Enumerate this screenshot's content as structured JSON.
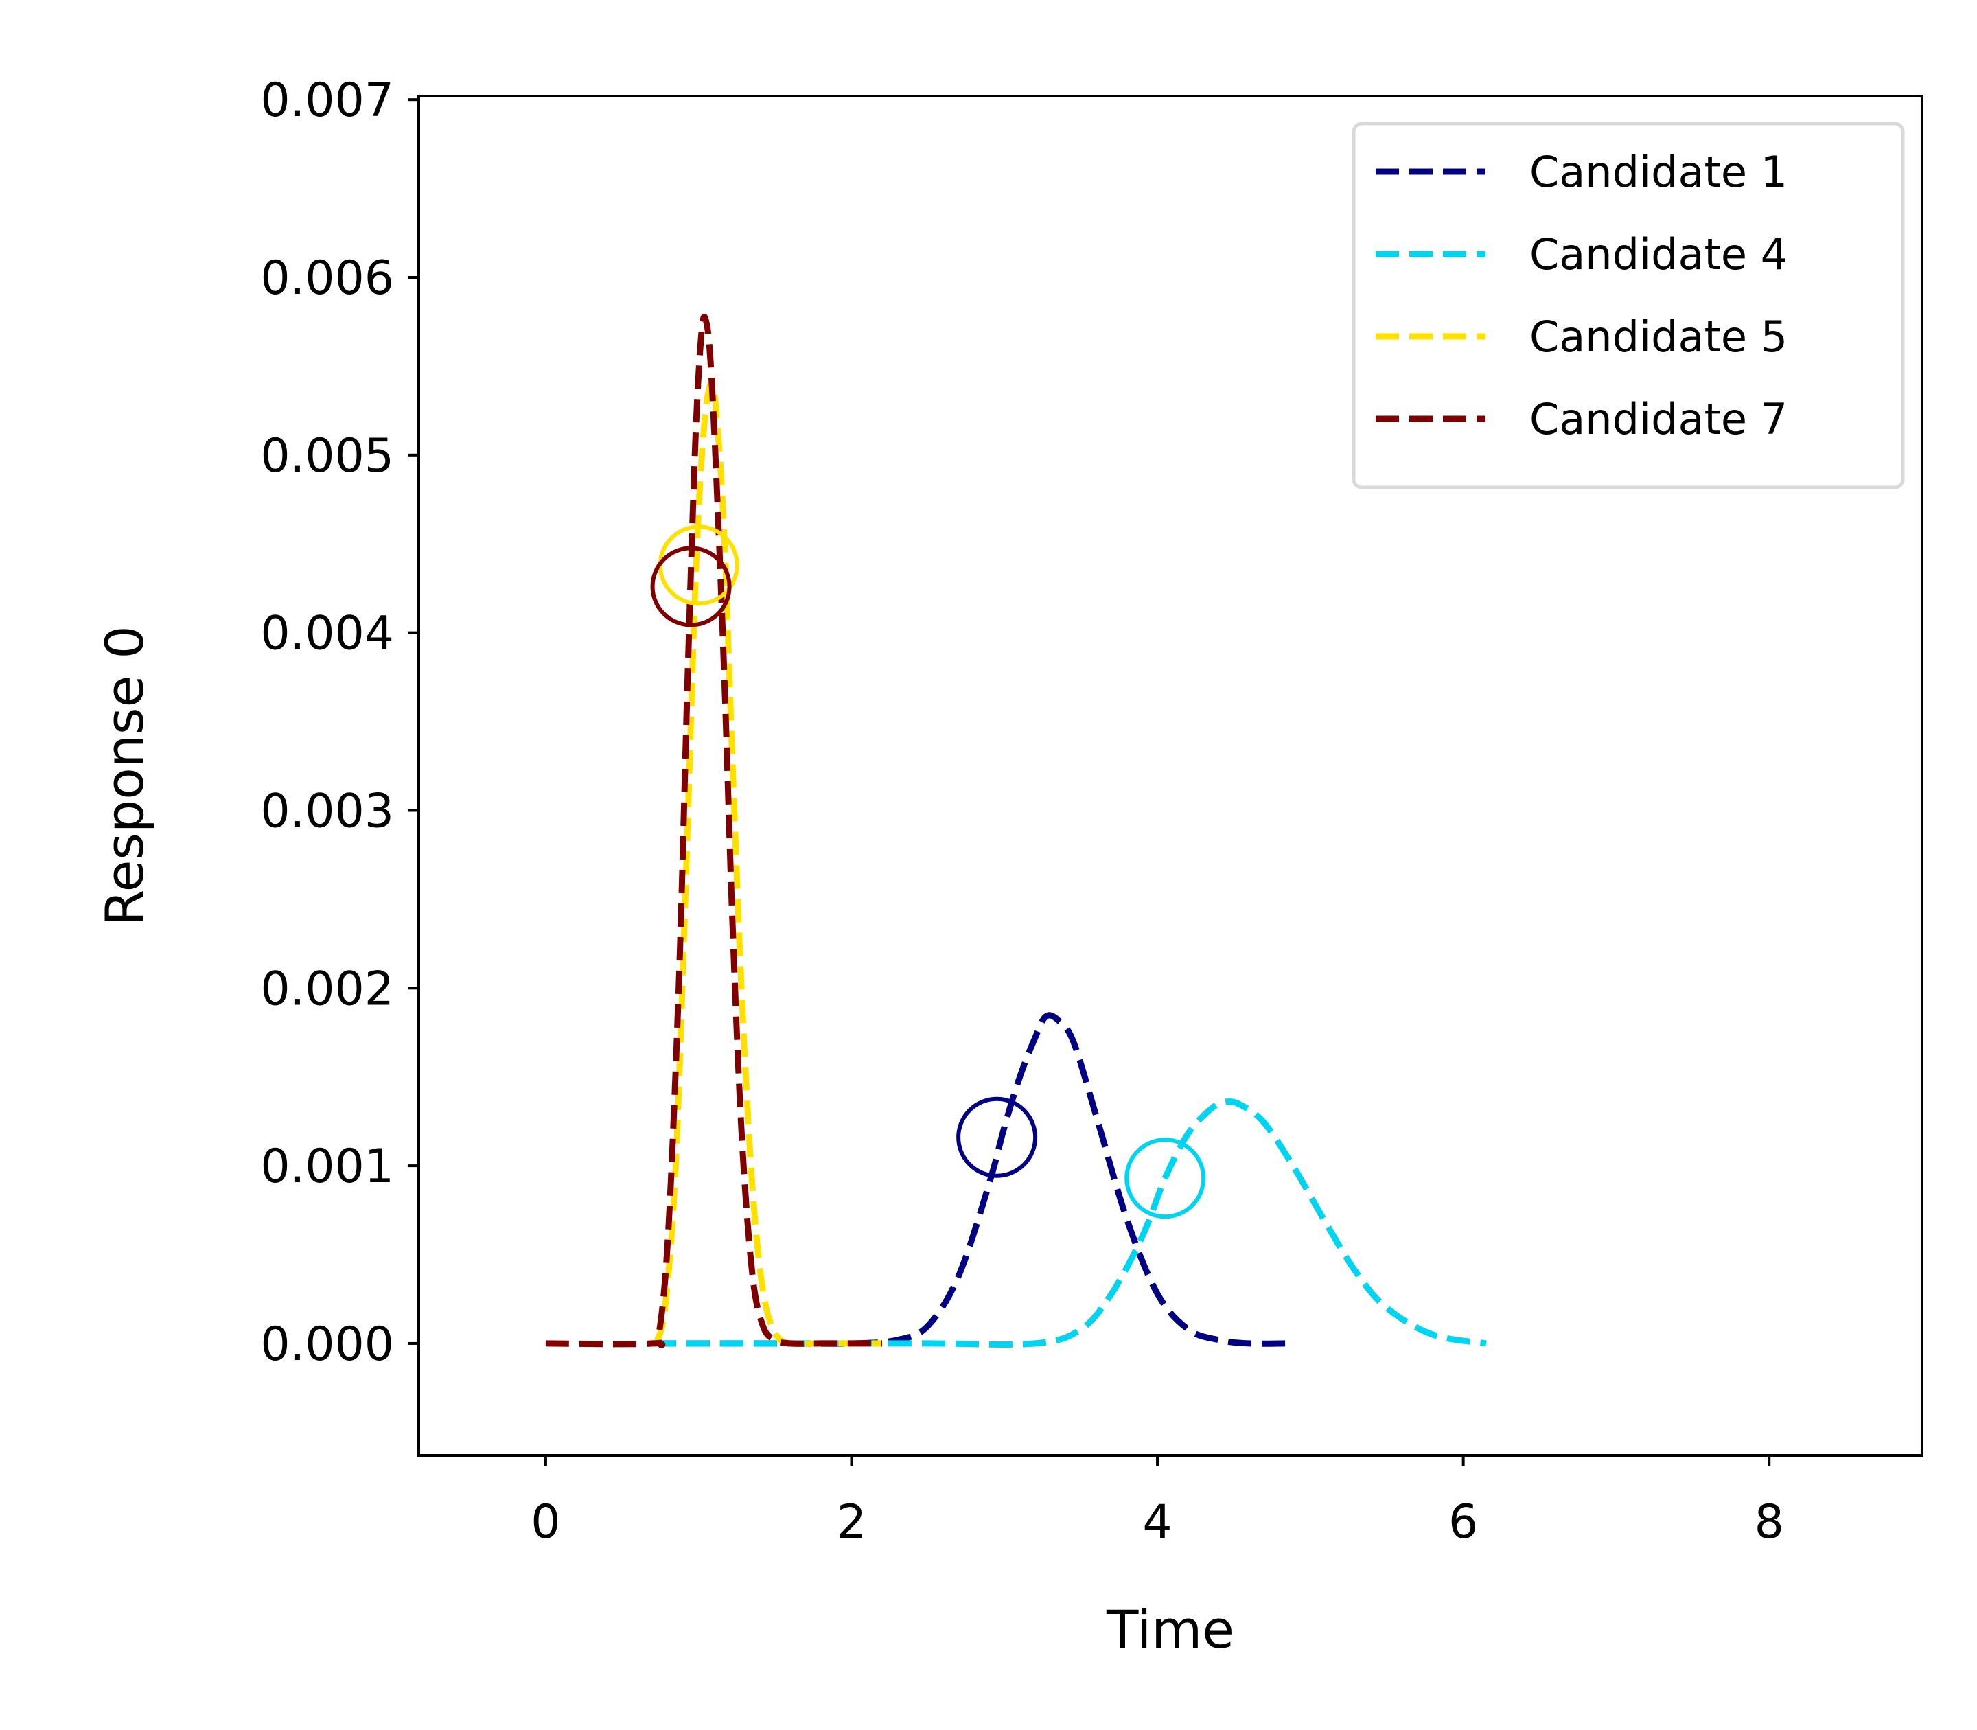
{
  "chart_data": {
    "type": "line",
    "title": "",
    "xlabel": "Time",
    "ylabel": "Response 0",
    "xlim": [
      -0.83,
      9.0
    ],
    "ylim": [
      -0.00063,
      0.00702
    ],
    "x_ticks": [
      0,
      2,
      4,
      6,
      8
    ],
    "x_tick_labels": [
      "0",
      "2",
      "4",
      "6",
      "8"
    ],
    "y_ticks": [
      0.0,
      0.001,
      0.002,
      0.003,
      0.004,
      0.005,
      0.006,
      0.007
    ],
    "y_tick_labels": [
      "0.000",
      "0.001",
      "0.002",
      "0.003",
      "0.004",
      "0.005",
      "0.006",
      "0.007"
    ],
    "grid": false,
    "legend_position": "top-right",
    "line_style": "dashed",
    "series": [
      {
        "name": "Candidate 1",
        "color": "#000080",
        "x": [
          0.7,
          1.0,
          1.5,
          2.0,
          2.3,
          2.5,
          2.7,
          2.9,
          3.0,
          3.1,
          3.2,
          3.27,
          3.35,
          3.45,
          3.6,
          3.8,
          4.0,
          4.2,
          4.4,
          4.6,
          4.85
        ],
        "y": [
          0.0,
          0.0,
          0.0,
          0.0,
          2e-05,
          0.0001,
          0.00038,
          0.0009,
          0.00122,
          0.0015,
          0.00172,
          0.00184,
          0.00182,
          0.0017,
          0.00128,
          0.0007,
          0.00028,
          8e-05,
          2e-05,
          0.0,
          0.0
        ]
      },
      {
        "name": "Candidate 4",
        "color": "#00d4f0",
        "x": [
          0.7,
          1.5,
          2.5,
          3.2,
          3.5,
          3.7,
          3.9,
          4.05,
          4.2,
          4.35,
          4.45,
          4.55,
          4.7,
          4.9,
          5.1,
          5.3,
          5.5,
          5.8,
          6.15
        ],
        "y": [
          0.0,
          0.0,
          0.0,
          0.0,
          8e-05,
          0.00028,
          0.0006,
          0.00093,
          0.00118,
          0.00132,
          0.00136,
          0.00134,
          0.00124,
          0.00098,
          0.00068,
          0.0004,
          0.0002,
          5e-05,
          0.0
        ],
        "marker": {
          "x": 4.05,
          "y": 0.00093
        }
      },
      {
        "name": "Candidate 5",
        "color": "#ffe000",
        "x": [
          0.72,
          0.78,
          0.85,
          0.92,
          0.98,
          1.03,
          1.08,
          1.12,
          1.17,
          1.22,
          1.28,
          1.35,
          1.42,
          1.5,
          1.6,
          1.8,
          2.2
        ],
        "y": [
          0.0,
          0.0002,
          0.001,
          0.0027,
          0.0043,
          0.0051,
          0.0054,
          0.0052,
          0.0045,
          0.0033,
          0.002,
          0.0009,
          0.0003,
          6e-05,
          0.0,
          0.0,
          0.0
        ],
        "marker": {
          "x": 1.0,
          "y": 0.00438
        }
      },
      {
        "name": "Candidate 7",
        "color": "#800000",
        "x": [
          0.0,
          0.7,
          0.74,
          0.8,
          0.87,
          0.93,
          0.98,
          1.02,
          1.05,
          1.08,
          1.12,
          1.17,
          1.22,
          1.28,
          1.35,
          1.42,
          1.5,
          1.6,
          1.8,
          2.2
        ],
        "y": [
          0.0,
          0.0,
          5e-05,
          0.0006,
          0.002,
          0.0038,
          0.0051,
          0.0057,
          0.00575,
          0.0055,
          0.0048,
          0.0037,
          0.0024,
          0.0012,
          0.0004,
          0.0001,
          2e-05,
          0.0,
          0.0,
          0.0
        ],
        "marker": {
          "x": 0.95,
          "y": 0.00426
        }
      },
      {
        "name": "Candidate 1 marker",
        "color": "#000080",
        "x": [],
        "y": [],
        "marker": {
          "x": 2.95,
          "y": 0.00116
        }
      }
    ]
  }
}
